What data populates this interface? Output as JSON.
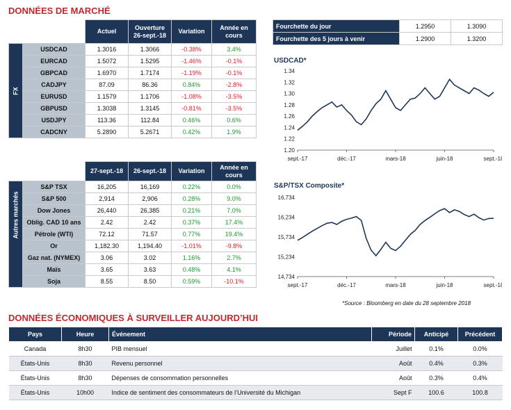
{
  "market": {
    "title": "DONNÉES DE MARCHÉ",
    "fx_side_label": "FX",
    "fx_headers": [
      "Actuel",
      "Ouverture 26-sept.-18",
      "Variation",
      "Année en cours"
    ],
    "fx_rows": [
      {
        "name": "USDCAD",
        "actuel": "1.3016",
        "ouverture": "1.3066",
        "variation": "-0.38%",
        "annee": "3.4%"
      },
      {
        "name": "EURCAD",
        "actuel": "1.5072",
        "ouverture": "1.5295",
        "variation": "-1.46%",
        "annee": "-0.1%"
      },
      {
        "name": "GBPCAD",
        "actuel": "1.6970",
        "ouverture": "1.7174",
        "variation": "-1.19%",
        "annee": "-0.1%"
      },
      {
        "name": "CADJPY",
        "actuel": "87.09",
        "ouverture": "86.36",
        "variation": "0.84%",
        "annee": "-2.8%"
      },
      {
        "name": "EURUSD",
        "actuel": "1.1579",
        "ouverture": "1.1706",
        "variation": "-1.08%",
        "annee": "-3.5%"
      },
      {
        "name": "GBPUSD",
        "actuel": "1.3038",
        "ouverture": "1.3145",
        "variation": "-0.81%",
        "annee": "-3.5%"
      },
      {
        "name": "USDJPY",
        "actuel": "113.36",
        "ouverture": "112.84",
        "variation": "0.46%",
        "annee": "0.6%"
      },
      {
        "name": "CADCNY",
        "actuel": "5.2890",
        "ouverture": "5.2671",
        "variation": "0.42%",
        "annee": "1.9%"
      }
    ],
    "other_side_label": "Autres marchés",
    "other_headers": [
      "27-sept.-18",
      "26-sept.-18",
      "Variation",
      "Année en cours"
    ],
    "other_rows": [
      {
        "name": "S&P TSX",
        "actuel": "16,205",
        "ouverture": "16,169",
        "variation": "0.22%",
        "annee": "0.0%"
      },
      {
        "name": "S&P 500",
        "actuel": "2,914",
        "ouverture": "2,906",
        "variation": "0.28%",
        "annee": "9.0%"
      },
      {
        "name": "Dow Jones",
        "actuel": "26,440",
        "ouverture": "26,385",
        "variation": "0.21%",
        "annee": "7.0%"
      },
      {
        "name": "Oblig. CAD 10 ans",
        "actuel": "2.42",
        "ouverture": "2.42",
        "variation": "0.37%",
        "annee": "17.4%"
      },
      {
        "name": "Pétrole (WTI)",
        "actuel": "72.12",
        "ouverture": "71.57",
        "variation": "0.77%",
        "annee": "19.4%"
      },
      {
        "name": "Or",
        "actuel": "1,182.30",
        "ouverture": "1,194.40",
        "variation": "-1.01%",
        "annee": "-9.8%"
      },
      {
        "name": "Gaz nat. (NYMEX)",
        "actuel": "3.06",
        "ouverture": "3.02",
        "variation": "1.16%",
        "annee": "2.7%"
      },
      {
        "name": "Maïs",
        "actuel": "3.65",
        "ouverture": "3.63",
        "variation": "0.48%",
        "annee": "4.1%"
      },
      {
        "name": "Soja",
        "actuel": "8.55",
        "ouverture": "8.50",
        "variation": "0.59%",
        "annee": "-10.1%"
      }
    ]
  },
  "ranges": [
    {
      "label": "Fourchette du jour",
      "low": "1.2950",
      "high": "1.3090"
    },
    {
      "label": "Fourchette des 5 jours à venir",
      "low": "1.2900",
      "high": "1.3200"
    }
  ],
  "chart_data": [
    {
      "type": "line",
      "title": "USDCAD*",
      "xticks": [
        "sept.-17",
        "déc.-17",
        "mars-18",
        "juin-18",
        "sept.-18"
      ],
      "ytick_labels": [
        "1.34",
        "1.32",
        "1.30",
        "1.28",
        "1.26",
        "1.24",
        "1.22",
        "1.20"
      ],
      "ylim": [
        1.2,
        1.34
      ],
      "values": [
        1.235,
        1.242,
        1.25,
        1.26,
        1.268,
        1.275,
        1.28,
        1.285,
        1.276,
        1.28,
        1.27,
        1.262,
        1.25,
        1.245,
        1.255,
        1.27,
        1.282,
        1.29,
        1.305,
        1.29,
        1.275,
        1.27,
        1.28,
        1.29,
        1.292,
        1.3,
        1.31,
        1.3,
        1.29,
        1.295,
        1.31,
        1.325,
        1.315,
        1.31,
        1.305,
        1.3,
        1.31,
        1.306,
        1.3,
        1.295,
        1.302
      ]
    },
    {
      "type": "line",
      "title": "S&P/TSX Composite*",
      "xticks": [
        "sept.-17",
        "déc.-17",
        "mars-18",
        "juin-18",
        "sept.-18"
      ],
      "ytick_labels": [
        "16,734",
        "16,234",
        "15,734",
        "15,234",
        "14,734"
      ],
      "ylim": [
        14734,
        16734
      ],
      "values": [
        15650,
        15720,
        15800,
        15880,
        15950,
        16020,
        16080,
        16100,
        16050,
        16130,
        16180,
        16210,
        16250,
        16150,
        15700,
        15400,
        15260,
        15420,
        15600,
        15450,
        15390,
        15500,
        15650,
        15800,
        15900,
        16050,
        16150,
        16230,
        16320,
        16400,
        16450,
        16350,
        16420,
        16380,
        16300,
        16250,
        16310,
        16220,
        16160,
        16200,
        16205
      ]
    }
  ],
  "source_note": "*Source : Bloomberg en date du  28 septembre 2018",
  "eco": {
    "title": "DONNÉES ÉCONOMIQUES À SURVEILLER AUJOURD’HUI",
    "headers": [
      "Pays",
      "Heure",
      "Événement",
      "Période",
      "Anticipé",
      "Précédent"
    ],
    "rows": [
      {
        "pays": "Canada",
        "heure": "8h30",
        "evenement": "PIB mensuel",
        "periode": "Juillet",
        "anticipe": "0.1%",
        "precedent": "0.0%"
      },
      {
        "pays": "États-Unis",
        "heure": "8h30",
        "evenement": "Revenu personnel",
        "periode": "Août",
        "anticipe": "0.4%",
        "precedent": "0.3%"
      },
      {
        "pays": "États-Unis",
        "heure": "8h30",
        "evenement": "Dépenses de consommation personnelles",
        "periode": "Août",
        "anticipe": "0.3%",
        "precedent": "0.4%"
      },
      {
        "pays": "États-Unis",
        "heure": "10h00",
        "evenement": "Indice de sentiment des consommateurs de l’Université du Michigan",
        "periode": "Sept F",
        "anticipe": "100.6",
        "precedent": "100.8"
      }
    ]
  }
}
